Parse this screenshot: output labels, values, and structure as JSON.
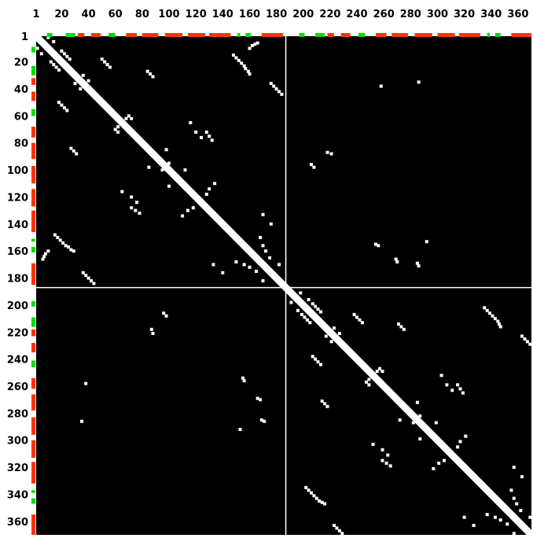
{
  "colors": {
    "background": "#000000",
    "contact": "#ffffff",
    "helix": "#ff3300",
    "strand": "#00dd00",
    "divider": "#ffffff"
  },
  "map": {
    "sequence_length": 370,
    "domain_boundary_residue": 187,
    "tick_labels": [
      "1",
      "20",
      "40",
      "60",
      "80",
      "100",
      "120",
      "140",
      "160",
      "180",
      "200",
      "220",
      "240",
      "260",
      "280",
      "300",
      "320",
      "340",
      "360"
    ]
  },
  "secondary_structure": [
    {
      "type": "strand",
      "start": 9,
      "end": 13
    },
    {
      "type": "strand",
      "start": 23,
      "end": 30
    },
    {
      "type": "helix",
      "start": 32,
      "end": 37
    },
    {
      "type": "helix",
      "start": 42,
      "end": 49
    },
    {
      "type": "strand",
      "start": 55,
      "end": 60
    },
    {
      "type": "helix",
      "start": 68,
      "end": 76
    },
    {
      "type": "helix",
      "start": 80,
      "end": 92
    },
    {
      "type": "helix",
      "start": 97,
      "end": 110
    },
    {
      "type": "helix",
      "start": 114,
      "end": 127
    },
    {
      "type": "helix",
      "start": 130,
      "end": 146
    },
    {
      "type": "strand",
      "start": 151,
      "end": 153
    },
    {
      "type": "strand",
      "start": 157,
      "end": 161
    },
    {
      "type": "helix",
      "start": 169,
      "end": 185
    },
    {
      "type": "strand",
      "start": 197,
      "end": 201
    },
    {
      "type": "strand",
      "start": 209,
      "end": 216
    },
    {
      "type": "helix",
      "start": 218,
      "end": 223
    },
    {
      "type": "helix",
      "start": 228,
      "end": 235
    },
    {
      "type": "strand",
      "start": 241,
      "end": 246
    },
    {
      "type": "helix",
      "start": 254,
      "end": 262
    },
    {
      "type": "helix",
      "start": 266,
      "end": 278
    },
    {
      "type": "helix",
      "start": 283,
      "end": 296
    },
    {
      "type": "helix",
      "start": 300,
      "end": 313
    },
    {
      "type": "helix",
      "start": 316,
      "end": 332
    },
    {
      "type": "strand",
      "start": 337,
      "end": 339
    },
    {
      "type": "strand",
      "start": 343,
      "end": 347
    },
    {
      "type": "helix",
      "start": 355,
      "end": 370
    }
  ],
  "contacts": [
    {
      "r1": 2,
      "r2": 10
    },
    {
      "r1": 5,
      "r2": 14
    },
    {
      "r1": 12,
      "r2": 20
    },
    {
      "r1": 14,
      "r2": 22
    },
    {
      "r1": 16,
      "r2": 24
    },
    {
      "r1": 18,
      "r2": 26
    },
    {
      "r1": 15,
      "r2": 148
    },
    {
      "r1": 17,
      "r2": 150
    },
    {
      "r1": 19,
      "r2": 152
    },
    {
      "r1": 21,
      "r2": 154
    },
    {
      "r1": 23,
      "r2": 156
    },
    {
      "r1": 25,
      "r2": 157
    },
    {
      "r1": 27,
      "r2": 159
    },
    {
      "r1": 29,
      "r2": 160
    },
    {
      "r1": 10,
      "r2": 160
    },
    {
      "r1": 8,
      "r2": 162
    },
    {
      "r1": 7,
      "r2": 164
    },
    {
      "r1": 6,
      "r2": 166
    },
    {
      "r1": 18,
      "r2": 50
    },
    {
      "r1": 20,
      "r2": 52
    },
    {
      "r1": 22,
      "r2": 54
    },
    {
      "r1": 24,
      "r2": 56
    },
    {
      "r1": 27,
      "r2": 84
    },
    {
      "r1": 29,
      "r2": 86
    },
    {
      "r1": 31,
      "r2": 88
    },
    {
      "r1": 36,
      "r2": 176
    },
    {
      "r1": 38,
      "r2": 178
    },
    {
      "r1": 40,
      "r2": 180
    },
    {
      "r1": 42,
      "r2": 182
    },
    {
      "r1": 44,
      "r2": 184
    },
    {
      "r1": 30,
      "r2": 36
    },
    {
      "r1": 34,
      "r2": 40
    },
    {
      "r1": 60,
      "r2": 70
    },
    {
      "r1": 62,
      "r2": 68
    },
    {
      "r1": 62,
      "r2": 72
    },
    {
      "r1": 65,
      "r2": 116
    },
    {
      "r1": 72,
      "r2": 120
    },
    {
      "r1": 76,
      "r2": 124
    },
    {
      "r1": 72,
      "r2": 128
    },
    {
      "r1": 75,
      "r2": 130
    },
    {
      "r1": 78,
      "r2": 132
    },
    {
      "r1": 85,
      "r2": 98
    },
    {
      "r1": 95,
      "r2": 100
    },
    {
      "r1": 100,
      "r2": 112
    },
    {
      "r1": 110,
      "r2": 134
    },
    {
      "r1": 114,
      "r2": 130
    },
    {
      "r1": 118,
      "r2": 128
    },
    {
      "r1": 133,
      "r2": 170
    },
    {
      "r1": 140,
      "r2": 176
    },
    {
      "r1": 150,
      "r2": 168
    },
    {
      "r1": 156,
      "r2": 170
    },
    {
      "r1": 160,
      "r2": 172
    },
    {
      "r1": 165,
      "r2": 175
    },
    {
      "r1": 170,
      "r2": 182
    },
    {
      "r1": 38,
      "r2": 258
    },
    {
      "r1": 96,
      "r2": 206
    },
    {
      "r1": 98,
      "r2": 208
    },
    {
      "r1": 166,
      "r2": 269
    },
    {
      "r1": 168,
      "r2": 270
    },
    {
      "r1": 169,
      "r2": 285
    },
    {
      "r1": 171,
      "r2": 286
    },
    {
      "r1": 218,
      "r2": 87
    },
    {
      "r1": 221,
      "r2": 88
    },
    {
      "r1": 254,
      "r2": 155
    },
    {
      "r1": 256,
      "r2": 156
    },
    {
      "r1": 286,
      "r2": 35
    },
    {
      "r1": 292,
      "r2": 153
    },
    {
      "r1": 191,
      "r2": 198
    },
    {
      "r1": 196,
      "r2": 204
    },
    {
      "r1": 199,
      "r2": 207
    },
    {
      "r1": 201,
      "r2": 209
    },
    {
      "r1": 203,
      "r2": 211
    },
    {
      "r1": 205,
      "r2": 213
    },
    {
      "r1": 202,
      "r2": 335
    },
    {
      "r1": 204,
      "r2": 337
    },
    {
      "r1": 206,
      "r2": 339
    },
    {
      "r1": 208,
      "r2": 341
    },
    {
      "r1": 210,
      "r2": 343
    },
    {
      "r1": 212,
      "r2": 345
    },
    {
      "r1": 214,
      "r2": 346
    },
    {
      "r1": 216,
      "r2": 347
    },
    {
      "r1": 207,
      "r2": 238
    },
    {
      "r1": 209,
      "r2": 240
    },
    {
      "r1": 211,
      "r2": 242
    },
    {
      "r1": 213,
      "r2": 244
    },
    {
      "r1": 214,
      "r2": 271
    },
    {
      "r1": 216,
      "r2": 273
    },
    {
      "r1": 218,
      "r2": 275
    },
    {
      "r1": 223,
      "r2": 363
    },
    {
      "r1": 225,
      "r2": 365
    },
    {
      "r1": 227,
      "r2": 367
    },
    {
      "r1": 229,
      "r2": 369
    },
    {
      "r1": 217,
      "r2": 223
    },
    {
      "r1": 221,
      "r2": 227
    },
    {
      "r1": 247,
      "r2": 257
    },
    {
      "r1": 249,
      "r2": 255
    },
    {
      "r1": 249,
      "r2": 259
    },
    {
      "r1": 252,
      "r2": 303
    },
    {
      "r1": 259,
      "r2": 307
    },
    {
      "r1": 263,
      "r2": 311
    },
    {
      "r1": 259,
      "r2": 315
    },
    {
      "r1": 262,
      "r2": 317
    },
    {
      "r1": 265,
      "r2": 319
    },
    {
      "r1": 272,
      "r2": 285
    },
    {
      "r1": 282,
      "r2": 287
    },
    {
      "r1": 287,
      "r2": 299
    },
    {
      "r1": 297,
      "r2": 321
    },
    {
      "r1": 301,
      "r2": 317
    },
    {
      "r1": 305,
      "r2": 315
    },
    {
      "r1": 320,
      "r2": 357
    },
    {
      "r1": 327,
      "r2": 363
    },
    {
      "r1": 337,
      "r2": 355
    },
    {
      "r1": 343,
      "r2": 357
    },
    {
      "r1": 347,
      "r2": 359
    },
    {
      "r1": 352,
      "r2": 362
    },
    {
      "r1": 357,
      "r2": 369
    }
  ]
}
